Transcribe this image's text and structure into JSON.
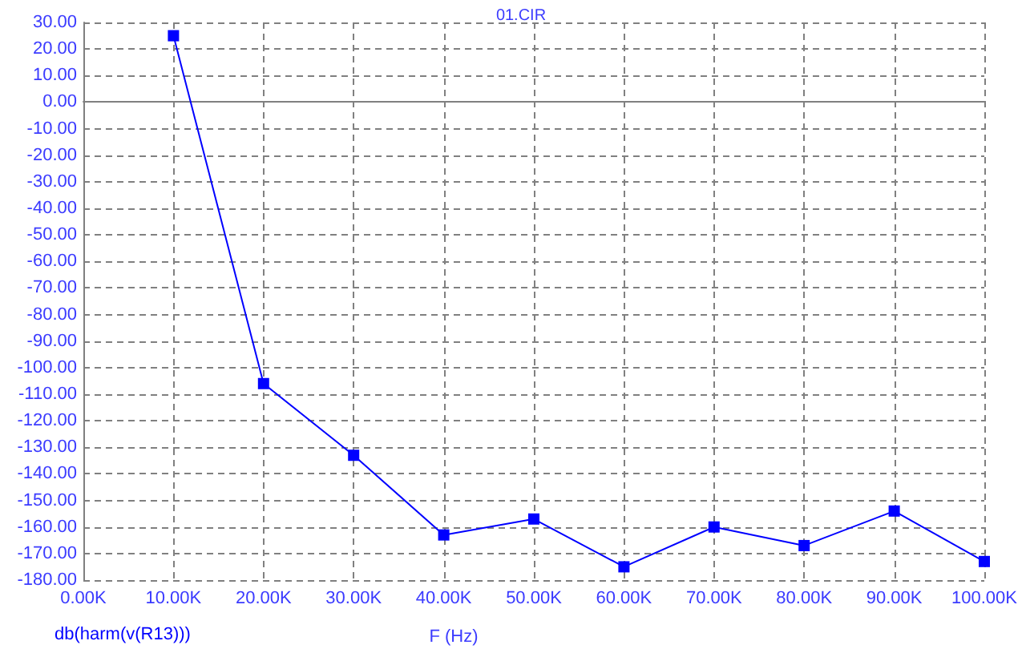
{
  "chart_data": {
    "type": "line",
    "title": "01.CIR",
    "xlabel": "F (Hz)",
    "x": [
      10000,
      20000,
      30000,
      40000,
      50000,
      60000,
      70000,
      80000,
      90000,
      100000
    ],
    "series": [
      {
        "name": "db(harm(v(R13)))",
        "color": "#0000ff",
        "values": [
          25,
          -106,
          -133,
          -163,
          -157,
          -175,
          -160,
          -167,
          -154,
          -173
        ]
      }
    ],
    "xlim": [
      0,
      100000
    ],
    "xticks": [
      {
        "value": 0,
        "label": "0.00K"
      },
      {
        "value": 10000,
        "label": "10.00K"
      },
      {
        "value": 20000,
        "label": "20.00K"
      },
      {
        "value": 30000,
        "label": "30.00K"
      },
      {
        "value": 40000,
        "label": "40.00K"
      },
      {
        "value": 50000,
        "label": "50.00K"
      },
      {
        "value": 60000,
        "label": "60.00K"
      },
      {
        "value": 70000,
        "label": "70.00K"
      },
      {
        "value": 80000,
        "label": "80.00K"
      },
      {
        "value": 90000,
        "label": "90.00K"
      },
      {
        "value": 100000,
        "label": "100.00K"
      }
    ],
    "ylim": [
      -180,
      30
    ],
    "yticks": [
      {
        "value": -180,
        "label": "-180.00"
      },
      {
        "value": -170,
        "label": "-170.00"
      },
      {
        "value": -160,
        "label": "-160.00"
      },
      {
        "value": -150,
        "label": "-150.00"
      },
      {
        "value": -140,
        "label": "-140.00"
      },
      {
        "value": -130,
        "label": "-130.00"
      },
      {
        "value": -120,
        "label": "-120.00"
      },
      {
        "value": -110,
        "label": "-110.00"
      },
      {
        "value": -100,
        "label": "-100.00"
      },
      {
        "value": -90,
        "label": "-90.00"
      },
      {
        "value": -80,
        "label": "-80.00"
      },
      {
        "value": -70,
        "label": "-70.00"
      },
      {
        "value": -60,
        "label": "-60.00"
      },
      {
        "value": -50,
        "label": "-50.00"
      },
      {
        "value": -40,
        "label": "-40.00"
      },
      {
        "value": -30,
        "label": "-30.00"
      },
      {
        "value": -20,
        "label": "-20.00"
      },
      {
        "value": -10,
        "label": "-10.00"
      },
      {
        "value": 0,
        "label": "0.00"
      },
      {
        "value": 10,
        "label": "10.00"
      },
      {
        "value": 20,
        "label": "20.00"
      },
      {
        "value": 30,
        "label": "30.00"
      }
    ],
    "grid": true,
    "legend": "bottom left",
    "marker": "square",
    "line_style": "solid"
  }
}
